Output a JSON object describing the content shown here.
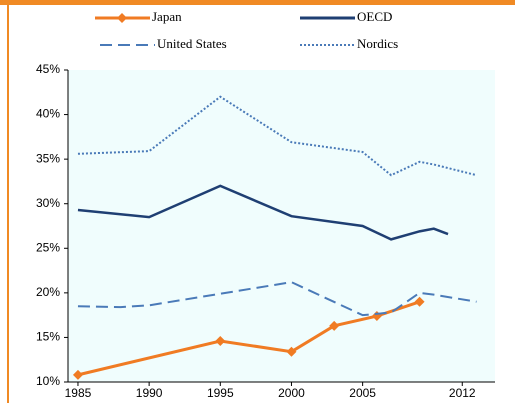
{
  "chart_data": {
    "type": "line",
    "xlim": [
      1984.3,
      2014.3
    ],
    "xticks": [
      1985,
      1990,
      1995,
      2000,
      2005,
      2012
    ],
    "ylim": [
      10,
      45
    ],
    "yticks": [
      {
        "value": 10,
        "label": "10%"
      },
      {
        "value": 15,
        "label": "15%"
      },
      {
        "value": 20,
        "label": "20%"
      },
      {
        "value": 25,
        "label": "25%"
      },
      {
        "value": 30,
        "label": "30%"
      },
      {
        "value": 35,
        "label": "35%"
      },
      {
        "value": 40,
        "label": "40%"
      },
      {
        "value": 45,
        "label": "45%"
      }
    ],
    "series": [
      {
        "name": "Japan",
        "color": "#f07b23",
        "style": "solid",
        "marker": "diamond",
        "x": [
          1985,
          1995,
          2000,
          2003,
          2006,
          2009
        ],
        "values": [
          10.8,
          14.6,
          13.4,
          16.3,
          17.4,
          19.0
        ]
      },
      {
        "name": "OECD",
        "color": "#1f3f73",
        "style": "solid",
        "x": [
          1985,
          1990,
          1995,
          2000,
          2005,
          2007,
          2009,
          2010,
          2011
        ],
        "values": [
          29.3,
          28.5,
          32.0,
          28.6,
          27.5,
          26.0,
          26.9,
          27.2,
          26.6
        ]
      },
      {
        "name": "United States",
        "color": "#4a7ab8",
        "style": "dashed",
        "x": [
          1985,
          1988,
          1990,
          1995,
          2000,
          2005,
          2007,
          2009,
          2010,
          2013
        ],
        "values": [
          18.5,
          18.4,
          18.6,
          19.9,
          21.2,
          17.5,
          17.8,
          20.0,
          19.8,
          19.0
        ]
      },
      {
        "name": "Nordics",
        "color": "#4a7ab8",
        "style": "dotted",
        "x": [
          1985,
          1990,
          1995,
          2000,
          2005,
          2007,
          2009,
          2010,
          2013
        ],
        "values": [
          35.6,
          35.9,
          42.0,
          36.9,
          35.8,
          33.2,
          34.7,
          34.4,
          33.2
        ]
      }
    ]
  }
}
